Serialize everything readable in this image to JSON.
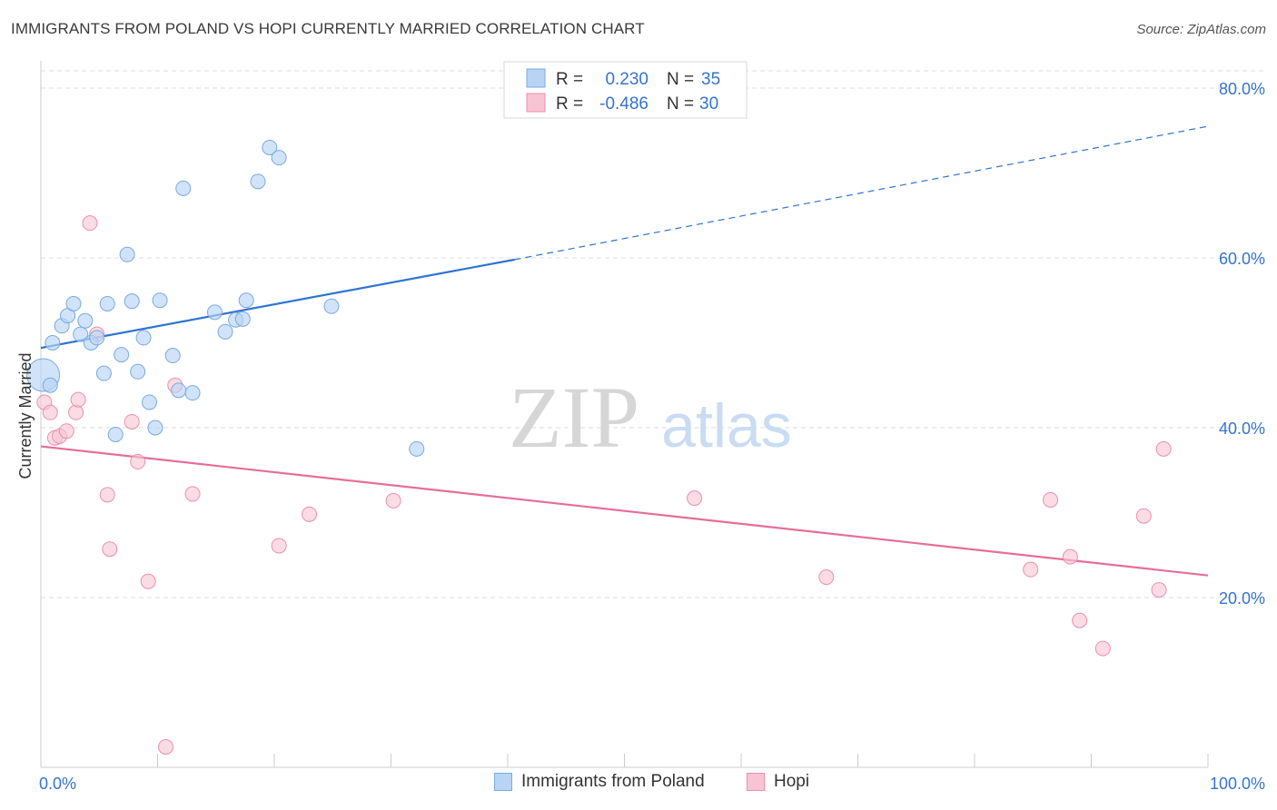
{
  "title": "IMMIGRANTS FROM POLAND VS HOPI CURRENTLY MARRIED CORRELATION CHART",
  "source": "Source: ZipAtlas.com",
  "watermark": {
    "zip": "ZIP",
    "atlas": "atlas"
  },
  "colors": {
    "blue_fill": "#b8d4f5",
    "blue_stroke": "#7aaae0",
    "blue_line": "#2f74d0",
    "pink_fill": "#f8c4d4",
    "pink_stroke": "#eb8fad",
    "pink_line": "#e56e98",
    "value_text": "#3573d0",
    "grid": "#dcdcdc"
  },
  "legend_top": [
    {
      "r_label": "R =",
      "r_value": "0.230",
      "n_label": "N =",
      "n_value": "35"
    },
    {
      "r_label": "R =",
      "r_value": "-0.486",
      "n_label": "N =",
      "n_value": "30"
    }
  ],
  "legend_bottom": [
    {
      "label": "Immigrants from Poland"
    },
    {
      "label": "Hopi"
    }
  ],
  "chart_data": {
    "type": "scatter",
    "title": "IMMIGRANTS FROM POLAND VS HOPI CURRENTLY MARRIED CORRELATION CHART",
    "xlabel": "",
    "ylabel": "Currently Married",
    "xlim": [
      0,
      100
    ],
    "ylim": [
      0,
      85
    ],
    "x_tick_labels": [
      "0.0%",
      "100.0%"
    ],
    "y_ticks": [
      20,
      40,
      60,
      80
    ],
    "y_tick_labels": [
      "20.0%",
      "40.0%",
      "60.0%",
      "80.0%"
    ],
    "grid": true,
    "legend_placement": "top-center",
    "series": [
      {
        "name": "Immigrants from Poland",
        "r": 0.23,
        "n": 35,
        "points": [
          [
            0.2,
            46.2
          ],
          [
            0.8,
            45.0
          ],
          [
            1.0,
            50.0
          ],
          [
            1.8,
            52.0
          ],
          [
            2.3,
            53.2
          ],
          [
            2.8,
            54.6
          ],
          [
            3.4,
            51.0
          ],
          [
            3.8,
            52.6
          ],
          [
            4.3,
            50.0
          ],
          [
            4.8,
            50.6
          ],
          [
            5.4,
            46.4
          ],
          [
            5.7,
            54.6
          ],
          [
            6.4,
            39.2
          ],
          [
            6.9,
            48.6
          ],
          [
            7.4,
            60.4
          ],
          [
            7.8,
            54.9
          ],
          [
            8.3,
            46.6
          ],
          [
            8.8,
            50.6
          ],
          [
            9.3,
            43.0
          ],
          [
            9.8,
            40.0
          ],
          [
            10.2,
            55.0
          ],
          [
            11.3,
            48.5
          ],
          [
            11.8,
            44.4
          ],
          [
            12.2,
            68.2
          ],
          [
            13.0,
            44.1
          ],
          [
            14.9,
            53.6
          ],
          [
            15.8,
            51.3
          ],
          [
            16.7,
            52.7
          ],
          [
            17.3,
            52.8
          ],
          [
            17.6,
            55.0
          ],
          [
            18.6,
            69.0
          ],
          [
            19.6,
            73.0
          ],
          [
            20.4,
            71.8
          ],
          [
            24.9,
            54.3
          ],
          [
            32.2,
            37.5
          ]
        ],
        "trend": {
          "x0": 0,
          "y0": 49.4,
          "x1": 40.6,
          "y1": 59.8,
          "dash_to_x": 100,
          "dash_to_y": 75.5
        }
      },
      {
        "name": "Hopi",
        "r": -0.486,
        "n": 30,
        "points": [
          [
            0.3,
            43.0
          ],
          [
            0.8,
            41.8
          ],
          [
            1.2,
            38.8
          ],
          [
            1.6,
            39.0
          ],
          [
            2.2,
            39.6
          ],
          [
            3.0,
            41.8
          ],
          [
            3.2,
            43.3
          ],
          [
            4.2,
            64.1
          ],
          [
            4.8,
            51.0
          ],
          [
            5.7,
            32.1
          ],
          [
            5.9,
            25.7
          ],
          [
            7.8,
            40.7
          ],
          [
            8.3,
            36.0
          ],
          [
            9.2,
            21.9
          ],
          [
            10.7,
            2.4
          ],
          [
            11.5,
            45.0
          ],
          [
            13.0,
            32.2
          ],
          [
            20.4,
            26.1
          ],
          [
            23.0,
            29.8
          ],
          [
            30.2,
            31.4
          ],
          [
            56.0,
            31.7
          ],
          [
            67.3,
            22.4
          ],
          [
            84.8,
            23.3
          ],
          [
            86.5,
            31.5
          ],
          [
            88.2,
            24.8
          ],
          [
            89.0,
            17.3
          ],
          [
            91.0,
            14.0
          ],
          [
            94.5,
            29.6
          ],
          [
            95.8,
            20.9
          ],
          [
            96.2,
            37.5
          ]
        ],
        "trend": {
          "x0": 0,
          "y0": 37.8,
          "x1": 100,
          "y1": 22.6
        }
      }
    ]
  }
}
